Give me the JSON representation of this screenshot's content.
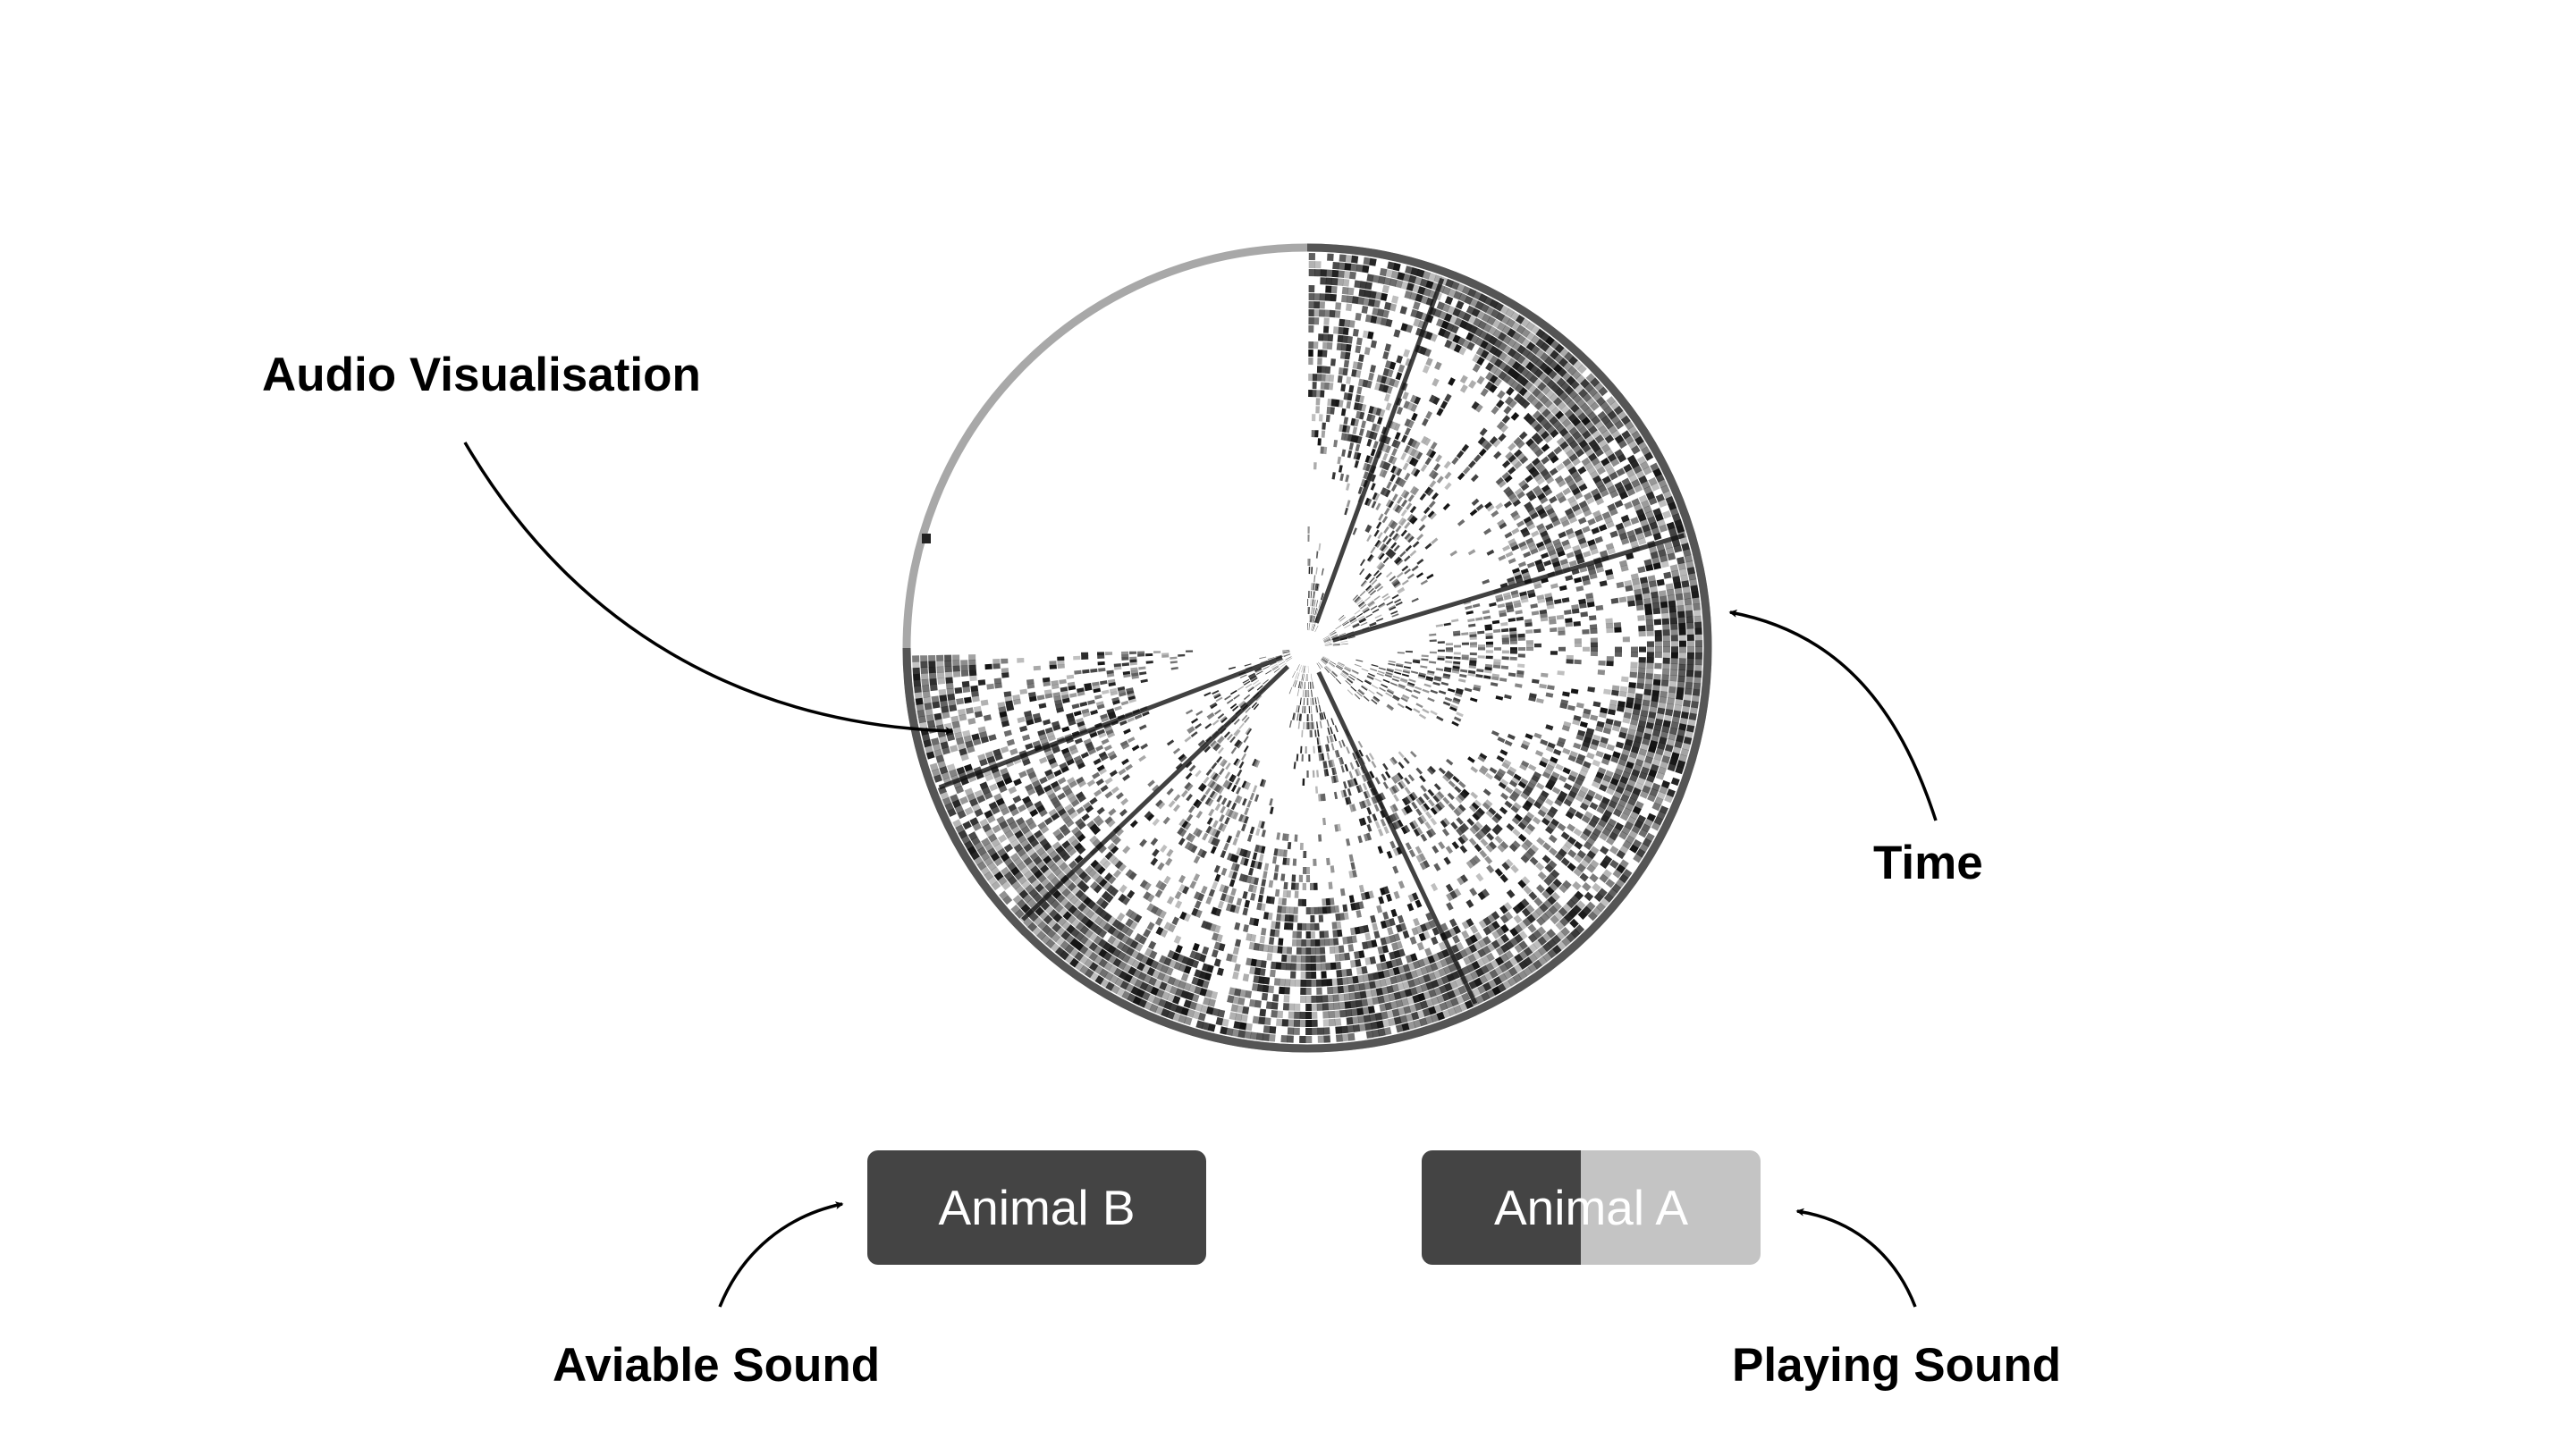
{
  "annotations": {
    "audio_visualisation": "Audio Visualisation",
    "time": "Time",
    "available_sound": "Aviable Sound",
    "playing_sound": "Playing Sound"
  },
  "buttons": {
    "animal_b": {
      "label": "Animal B",
      "state": "available"
    },
    "animal_a": {
      "label": "Animal A",
      "state": "playing",
      "progress": 0.47
    }
  },
  "visualisation": {
    "type": "radial-spectrogram",
    "time_progress": 0.75,
    "colors": {
      "ring_track": "#a8a8a8",
      "ring_elapsed": "#555555",
      "spectrum": "#111111",
      "button_dark": "#444444",
      "button_light": "#c4c4c4"
    }
  }
}
